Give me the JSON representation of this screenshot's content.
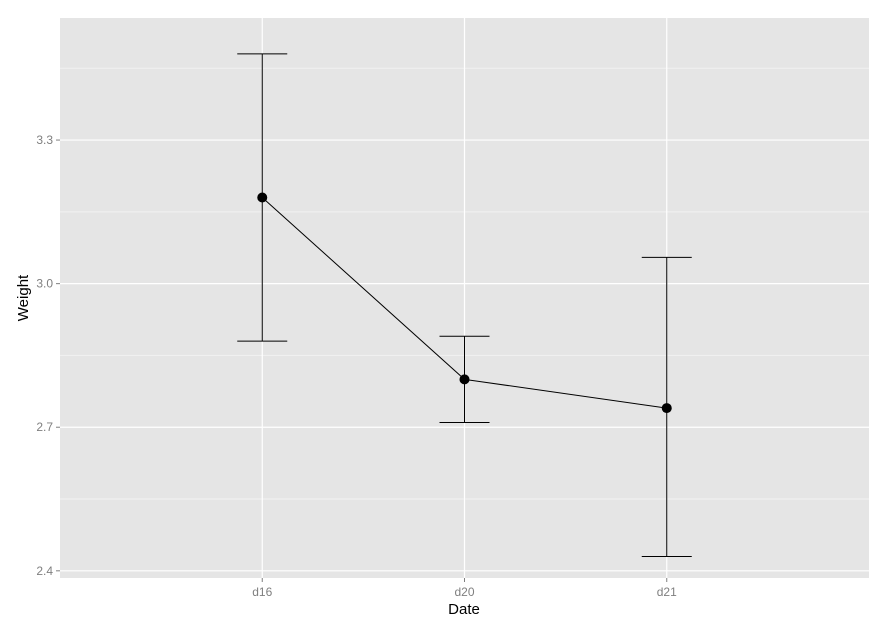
{
  "chart_data": {
    "type": "line",
    "xlabel": "Date",
    "ylabel": "Weight",
    "categories": [
      "d16",
      "d20",
      "d21"
    ],
    "values": [
      3.18,
      2.8,
      2.74
    ],
    "error_low": [
      2.88,
      2.71,
      2.43
    ],
    "error_high": [
      3.48,
      2.89,
      3.055
    ],
    "ylim": [
      2.385,
      3.555
    ],
    "yticks": [
      2.4,
      2.7,
      3.0,
      3.3
    ],
    "ytick_labels": [
      "2.4",
      "2.7",
      "3.0",
      "3.3"
    ],
    "grid": true,
    "legend": "none",
    "colors": {
      "panel": "#e5e5e5",
      "grid_major": "#ffffff",
      "grid_minor": "#f2f2f2",
      "line": "#000000",
      "point": "#000000",
      "tick_label": "#7f7f7f"
    }
  }
}
